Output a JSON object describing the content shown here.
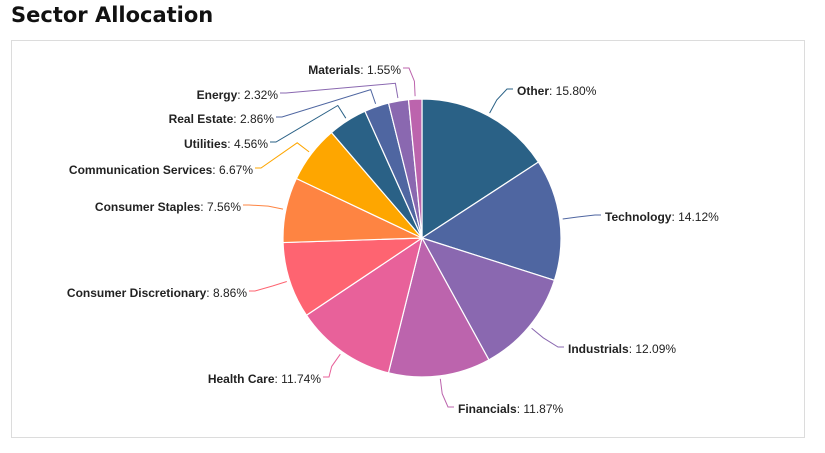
{
  "page": {
    "title": "Sector Allocation"
  },
  "chart_data": {
    "type": "pie",
    "title": "",
    "start_angle_deg": 0,
    "direction": "clockwise",
    "slices": [
      {
        "label": "Other",
        "value": 15.8,
        "display": "15.80%",
        "color": "#2a6186"
      },
      {
        "label": "Technology",
        "value": 14.12,
        "display": "14.12%",
        "color": "#4f66a1"
      },
      {
        "label": "Industrials",
        "value": 12.09,
        "display": "12.09%",
        "color": "#8a68b0"
      },
      {
        "label": "Financials",
        "value": 11.87,
        "display": "11.87%",
        "color": "#bc64ad"
      },
      {
        "label": "Health Care",
        "value": 11.74,
        "display": "11.74%",
        "color": "#e8619a"
      },
      {
        "label": "Consumer Discretionary",
        "value": 8.86,
        "display": "8.86%",
        "color": "#fe6471"
      },
      {
        "label": "Consumer Staples",
        "value": 7.56,
        "display": "7.56%",
        "color": "#fe8442"
      },
      {
        "label": "Communication Services",
        "value": 6.67,
        "display": "6.67%",
        "color": "#fea600"
      },
      {
        "label": "Utilities",
        "value": 4.56,
        "display": "4.56%",
        "color": "#2a6186"
      },
      {
        "label": "Real Estate",
        "value": 2.86,
        "display": "2.86%",
        "color": "#4f66a1"
      },
      {
        "label": "Energy",
        "value": 2.32,
        "display": "2.32%",
        "color": "#8a68b0"
      },
      {
        "label": "Materials",
        "value": 1.55,
        "display": "1.55%",
        "color": "#bc64ad"
      }
    ]
  }
}
